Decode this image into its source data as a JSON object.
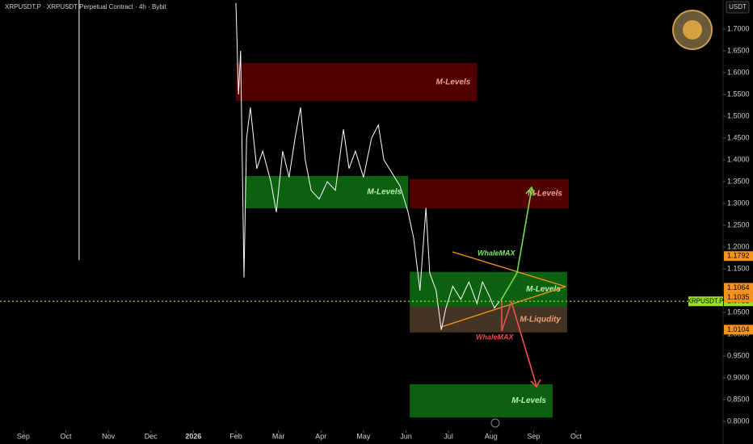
{
  "chart_data": {
    "type": "line",
    "title": "XRPUSDT.P · XRPUSDT Perpetual Contract · 4h · Bybit",
    "currency": "USDT",
    "x": [
      1.31,
      1.31,
      null,
      5.0,
      5.06,
      5.11,
      5.19,
      5.25,
      5.34,
      5.49,
      5.63,
      5.82,
      5.95,
      6.1,
      6.25,
      6.39,
      6.52,
      6.63,
      6.77,
      6.96,
      7.15,
      7.34,
      7.53,
      7.66,
      7.81,
      8.0,
      8.19,
      8.35,
      8.48,
      8.67,
      8.86,
      9.05,
      9.18,
      9.33,
      9.47,
      9.56,
      9.71,
      9.83,
      9.94,
      10.1,
      10.29,
      10.48,
      10.67,
      10.8,
      10.95,
      11.08,
      11.2
    ],
    "values": [
      1.77,
      1.17,
      null,
      1.76,
      1.55,
      1.65,
      1.13,
      1.45,
      1.52,
      1.38,
      1.42,
      1.35,
      1.28,
      1.42,
      1.36,
      1.45,
      1.52,
      1.4,
      1.33,
      1.31,
      1.35,
      1.33,
      1.47,
      1.38,
      1.42,
      1.36,
      1.45,
      1.48,
      1.4,
      1.37,
      1.34,
      1.28,
      1.22,
      1.1,
      1.29,
      1.14,
      1.1,
      1.01,
      1.06,
      1.11,
      1.08,
      1.12,
      1.07,
      1.12,
      1.09,
      1.06,
      1.0755
    ],
    "color": "#ffffff",
    "xlim": [
      -0.55,
      16.46
    ],
    "ylim": [
      0.7796,
      1.7667
    ],
    "xticks": [
      {
        "value": 0,
        "label": "Sep"
      },
      {
        "value": 1,
        "label": "Oct"
      },
      {
        "value": 2,
        "label": "Nov"
      },
      {
        "value": 3,
        "label": "Dec"
      },
      {
        "value": 4,
        "label": "2026"
      },
      {
        "value": 5,
        "label": "Feb"
      },
      {
        "value": 6,
        "label": "Mar"
      },
      {
        "value": 7,
        "label": "Apr"
      },
      {
        "value": 8,
        "label": "May"
      },
      {
        "value": 9,
        "label": "Jun"
      },
      {
        "value": 10,
        "label": "Jul"
      },
      {
        "value": 11,
        "label": "Aug"
      },
      {
        "value": 12,
        "label": "Sep"
      },
      {
        "value": 13,
        "label": "Oct"
      }
    ],
    "yticks": [
      {
        "value": 1.7,
        "label": "1.7000"
      },
      {
        "value": 1.65,
        "label": "1.6500"
      },
      {
        "value": 1.6,
        "label": "1.6000"
      },
      {
        "value": 1.55,
        "label": "1.5500"
      },
      {
        "value": 1.5,
        "label": "1.5000"
      },
      {
        "value": 1.45,
        "label": "1.4500"
      },
      {
        "value": 1.4,
        "label": "1.4000"
      },
      {
        "value": 1.35,
        "label": "1.3500"
      },
      {
        "value": 1.3,
        "label": "1.3000"
      },
      {
        "value": 1.25,
        "label": "1.2500"
      },
      {
        "value": 1.2,
        "label": "1.2000"
      },
      {
        "value": 1.15,
        "label": "1.1500"
      },
      {
        "value": 1.1,
        "label": "1.1000"
      },
      {
        "value": 1.05,
        "label": "1.0500"
      },
      {
        "value": 1.0,
        "label": "1.0000"
      },
      {
        "value": 0.95,
        "label": "0.9500"
      },
      {
        "value": 0.9,
        "label": "0.9000"
      },
      {
        "value": 0.85,
        "label": "0.8500"
      },
      {
        "value": 0.8,
        "label": "0.8000"
      }
    ],
    "price_tags": [
      1.1792,
      1.1064,
      1.1035,
      1.0104
    ],
    "price_tag_color": "#f7931a",
    "current": {
      "name": "XRPUSDT.P",
      "value": 1.0755,
      "color": "#9ae01c"
    },
    "zones": [
      {
        "label": "M-Levels",
        "x": [
          5.0,
          10.67
        ],
        "price": [
          1.535,
          1.622
        ],
        "color": "#5a0000",
        "text_color": "#f0a090"
      },
      {
        "label": "M-Levels",
        "x": [
          5.21,
          9.05
        ],
        "price": [
          1.289,
          1.363
        ],
        "color": "#0d6b12",
        "text_color": "#b8f0a8"
      },
      {
        "label": "M-Levels",
        "x": [
          9.09,
          12.83
        ],
        "price": [
          1.289,
          1.356
        ],
        "color": "#5a0000",
        "text_color": "#f0a090"
      },
      {
        "label": "M-Levels",
        "x": [
          9.09,
          12.79
        ],
        "price": [
          1.063,
          1.143
        ],
        "color": "#0d6b12",
        "text_color": "#b8f0a8"
      },
      {
        "label": "M-Liqudity",
        "x": [
          9.09,
          12.79
        ],
        "price": [
          1.004,
          1.063
        ],
        "color": "#4a3a28",
        "text_color": "#f0a070"
      },
      {
        "label": "M-Levels",
        "x": [
          9.09,
          12.45
        ],
        "price": [
          0.809,
          0.885
        ],
        "color": "#0d6b12",
        "text_color": "#b8f0a8"
      }
    ],
    "annotations": [
      "WhaleMAX",
      "WhaleMAX"
    ]
  }
}
